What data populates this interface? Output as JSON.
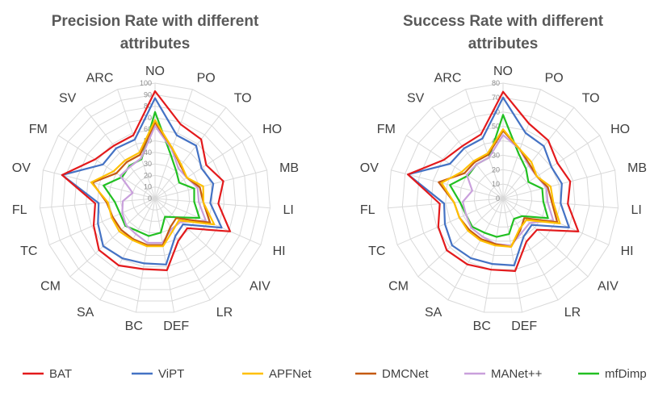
{
  "chart_data": [
    {
      "type": "radar",
      "title_lines": [
        "Precision Rate with different",
        "attributes"
      ],
      "axes": [
        "NO",
        "PO",
        "TO",
        "HO",
        "MB",
        "LI",
        "HI",
        "AIV",
        "LR",
        "DEF",
        "BC",
        "SA",
        "CM",
        "TC",
        "FL",
        "OV",
        "FM",
        "SV",
        "ARC"
      ],
      "ticks": [
        0,
        10,
        20,
        30,
        40,
        50,
        60,
        70,
        80,
        90,
        100
      ],
      "rmax": 100,
      "series": [
        {
          "name": "BAT",
          "values": [
            93,
            68,
            65,
            53,
            61,
            55,
            71,
            38,
            42,
            63,
            62,
            66,
            66,
            58,
            52,
            83,
            62,
            58,
            58
          ]
        },
        {
          "name": "ViPT",
          "values": [
            87,
            58,
            58,
            48,
            52,
            48,
            63,
            33,
            37,
            58,
            57,
            59,
            61,
            54,
            49,
            83,
            54,
            55,
            54
          ]
        },
        {
          "name": "APFNet",
          "values": [
            68,
            46,
            37,
            33,
            43,
            42,
            56,
            28,
            32,
            42,
            42,
            41,
            42,
            41,
            41,
            57,
            43,
            42,
            42
          ]
        },
        {
          "name": "DMCNet",
          "values": [
            66,
            46,
            36,
            33,
            40,
            42,
            52,
            25,
            28,
            41,
            41,
            40,
            40,
            40,
            42,
            56,
            40,
            40,
            40
          ]
        },
        {
          "name": "MANet++",
          "values": [
            63,
            45,
            33,
            33,
            38,
            38,
            48,
            30,
            30,
            39,
            39,
            35,
            34,
            31,
            28,
            20,
            36,
            35,
            37
          ]
        },
        {
          "name": "mfDimp",
          "values": [
            75,
            41,
            30,
            25,
            35,
            34,
            42,
            24,
            18,
            30,
            33,
            32,
            35,
            33,
            35,
            46,
            34,
            36,
            36
          ]
        }
      ]
    },
    {
      "type": "radar",
      "title_lines": [
        "Success Rate with different",
        "attributes"
      ],
      "axes": [
        "NO",
        "PO",
        "TO",
        "HO",
        "MB",
        "LI",
        "HI",
        "AIV",
        "LR",
        "DEF",
        "BC",
        "SA",
        "CM",
        "TC",
        "FL",
        "OV",
        "FM",
        "SV",
        "ARC"
      ],
      "ticks": [
        0,
        10,
        20,
        30,
        40,
        50,
        60,
        70,
        80
      ],
      "rmax": 80,
      "series": [
        {
          "name": "BAT",
          "values": [
            74,
            55,
            51,
            45,
            48,
            45,
            57,
            32,
            34,
            51,
            50,
            52,
            53,
            49,
            44,
            68,
            49,
            46,
            47
          ]
        },
        {
          "name": "ViPT",
          "values": [
            70,
            48,
            46,
            40,
            42,
            40,
            50,
            27,
            30,
            47,
            46,
            47,
            48,
            44,
            41,
            68,
            44,
            44,
            44
          ]
        },
        {
          "name": "APFNet",
          "values": [
            48,
            36,
            32,
            28,
            34,
            35,
            43,
            22,
            24,
            34,
            33,
            33,
            33,
            33,
            34,
            44,
            34,
            33,
            33
          ]
        },
        {
          "name": "DMCNet",
          "values": [
            47,
            36,
            30,
            28,
            32,
            34,
            41,
            20,
            25,
            34,
            32,
            32,
            32,
            33,
            34,
            46,
            32,
            32,
            32
          ]
        },
        {
          "name": "MANet++",
          "values": [
            44,
            36,
            29,
            28,
            31,
            31,
            38,
            25,
            27,
            33,
            32,
            30,
            30,
            28,
            28,
            22,
            30,
            30,
            30
          ]
        },
        {
          "name": "mfDimp",
          "values": [
            58,
            33,
            26,
            21,
            28,
            28,
            34,
            18,
            16,
            25,
            27,
            27,
            29,
            28,
            30,
            38,
            29,
            30,
            30
          ]
        }
      ]
    }
  ],
  "colors": {
    "BAT": "#e31a1c",
    "ViPT": "#4472c4",
    "APFNet": "#ffc000",
    "DMCNet": "#c55a11",
    "MANet++": "#c9a0dc",
    "mfDimp": "#22c022",
    "grid": "#d9d9d9"
  },
  "legend": [
    "BAT",
    "ViPT",
    "APFNet",
    "DMCNet",
    "MANet++",
    "mfDimp"
  ]
}
